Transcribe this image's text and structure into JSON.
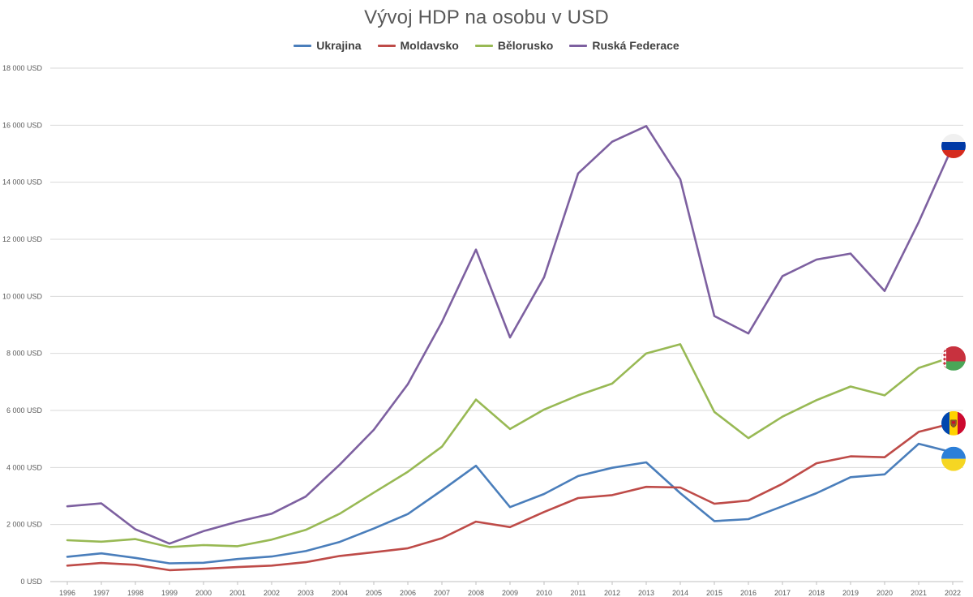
{
  "chart_data": {
    "type": "line",
    "title": "Vývoj HDP na osobu v USD",
    "xlabel": "",
    "ylabel": "",
    "ylim": [
      0,
      18000
    ],
    "y_ticks": [
      0,
      2000,
      4000,
      6000,
      8000,
      10000,
      12000,
      14000,
      16000,
      18000
    ],
    "y_tick_labels": [
      "0 USD",
      "2 000 USD",
      "4 000 USD",
      "6 000 USD",
      "8 000 USD",
      "10 000 USD",
      "12 000 USD",
      "14 000 USD",
      "16 000 USD",
      "18 000 USD"
    ],
    "grid": "horizontal",
    "legend_position": "top-center",
    "categories": [
      "1996",
      "1997",
      "1998",
      "1999",
      "2000",
      "2001",
      "2002",
      "2003",
      "2004",
      "2005",
      "2006",
      "2007",
      "2008",
      "2009",
      "2010",
      "2011",
      "2012",
      "2013",
      "2014",
      "2015",
      "2016",
      "2017",
      "2018",
      "2019",
      "2020",
      "2021",
      "2022"
    ],
    "series": [
      {
        "name": "Ukrajina",
        "color": "#4a7ebb",
        "flag_icon": "ukraine-flag-icon",
        "values": [
          870,
          990,
          830,
          640,
          660,
          790,
          880,
          1070,
          1390,
          1860,
          2370,
          3200,
          4060,
          2610,
          3070,
          3700,
          3990,
          4180,
          3100,
          2120,
          2190,
          2640,
          3100,
          3660,
          3760,
          4830,
          4530
        ]
      },
      {
        "name": "Moldavsko",
        "color": "#be4b48",
        "flag_icon": "moldova-flag-icon",
        "values": [
          560,
          650,
          590,
          400,
          450,
          510,
          560,
          680,
          900,
          1030,
          1170,
          1520,
          2100,
          1910,
          2440,
          2930,
          3030,
          3320,
          3300,
          2730,
          2840,
          3430,
          4150,
          4390,
          4360,
          5250,
          5550
        ]
      },
      {
        "name": "Bělorusko",
        "color": "#98b954",
        "flag_icon": "belarus-flag-icon",
        "values": [
          1450,
          1400,
          1490,
          1210,
          1280,
          1240,
          1470,
          1810,
          2380,
          3120,
          3850,
          4730,
          6380,
          5350,
          6030,
          6530,
          6940,
          8000,
          8320,
          5950,
          5030,
          5780,
          6360,
          6840,
          6530,
          7490,
          7880
        ]
      },
      {
        "name": "Ruská Federace",
        "color": "#7d60a0",
        "flag_icon": "russia-flag-icon",
        "values": [
          2640,
          2740,
          1830,
          1330,
          1770,
          2100,
          2380,
          2980,
          4100,
          5320,
          6920,
          9100,
          11640,
          8560,
          10670,
          14310,
          15420,
          15970,
          14100,
          9310,
          8700,
          10710,
          11290,
          11500,
          10190,
          12600,
          15270
        ]
      }
    ]
  }
}
